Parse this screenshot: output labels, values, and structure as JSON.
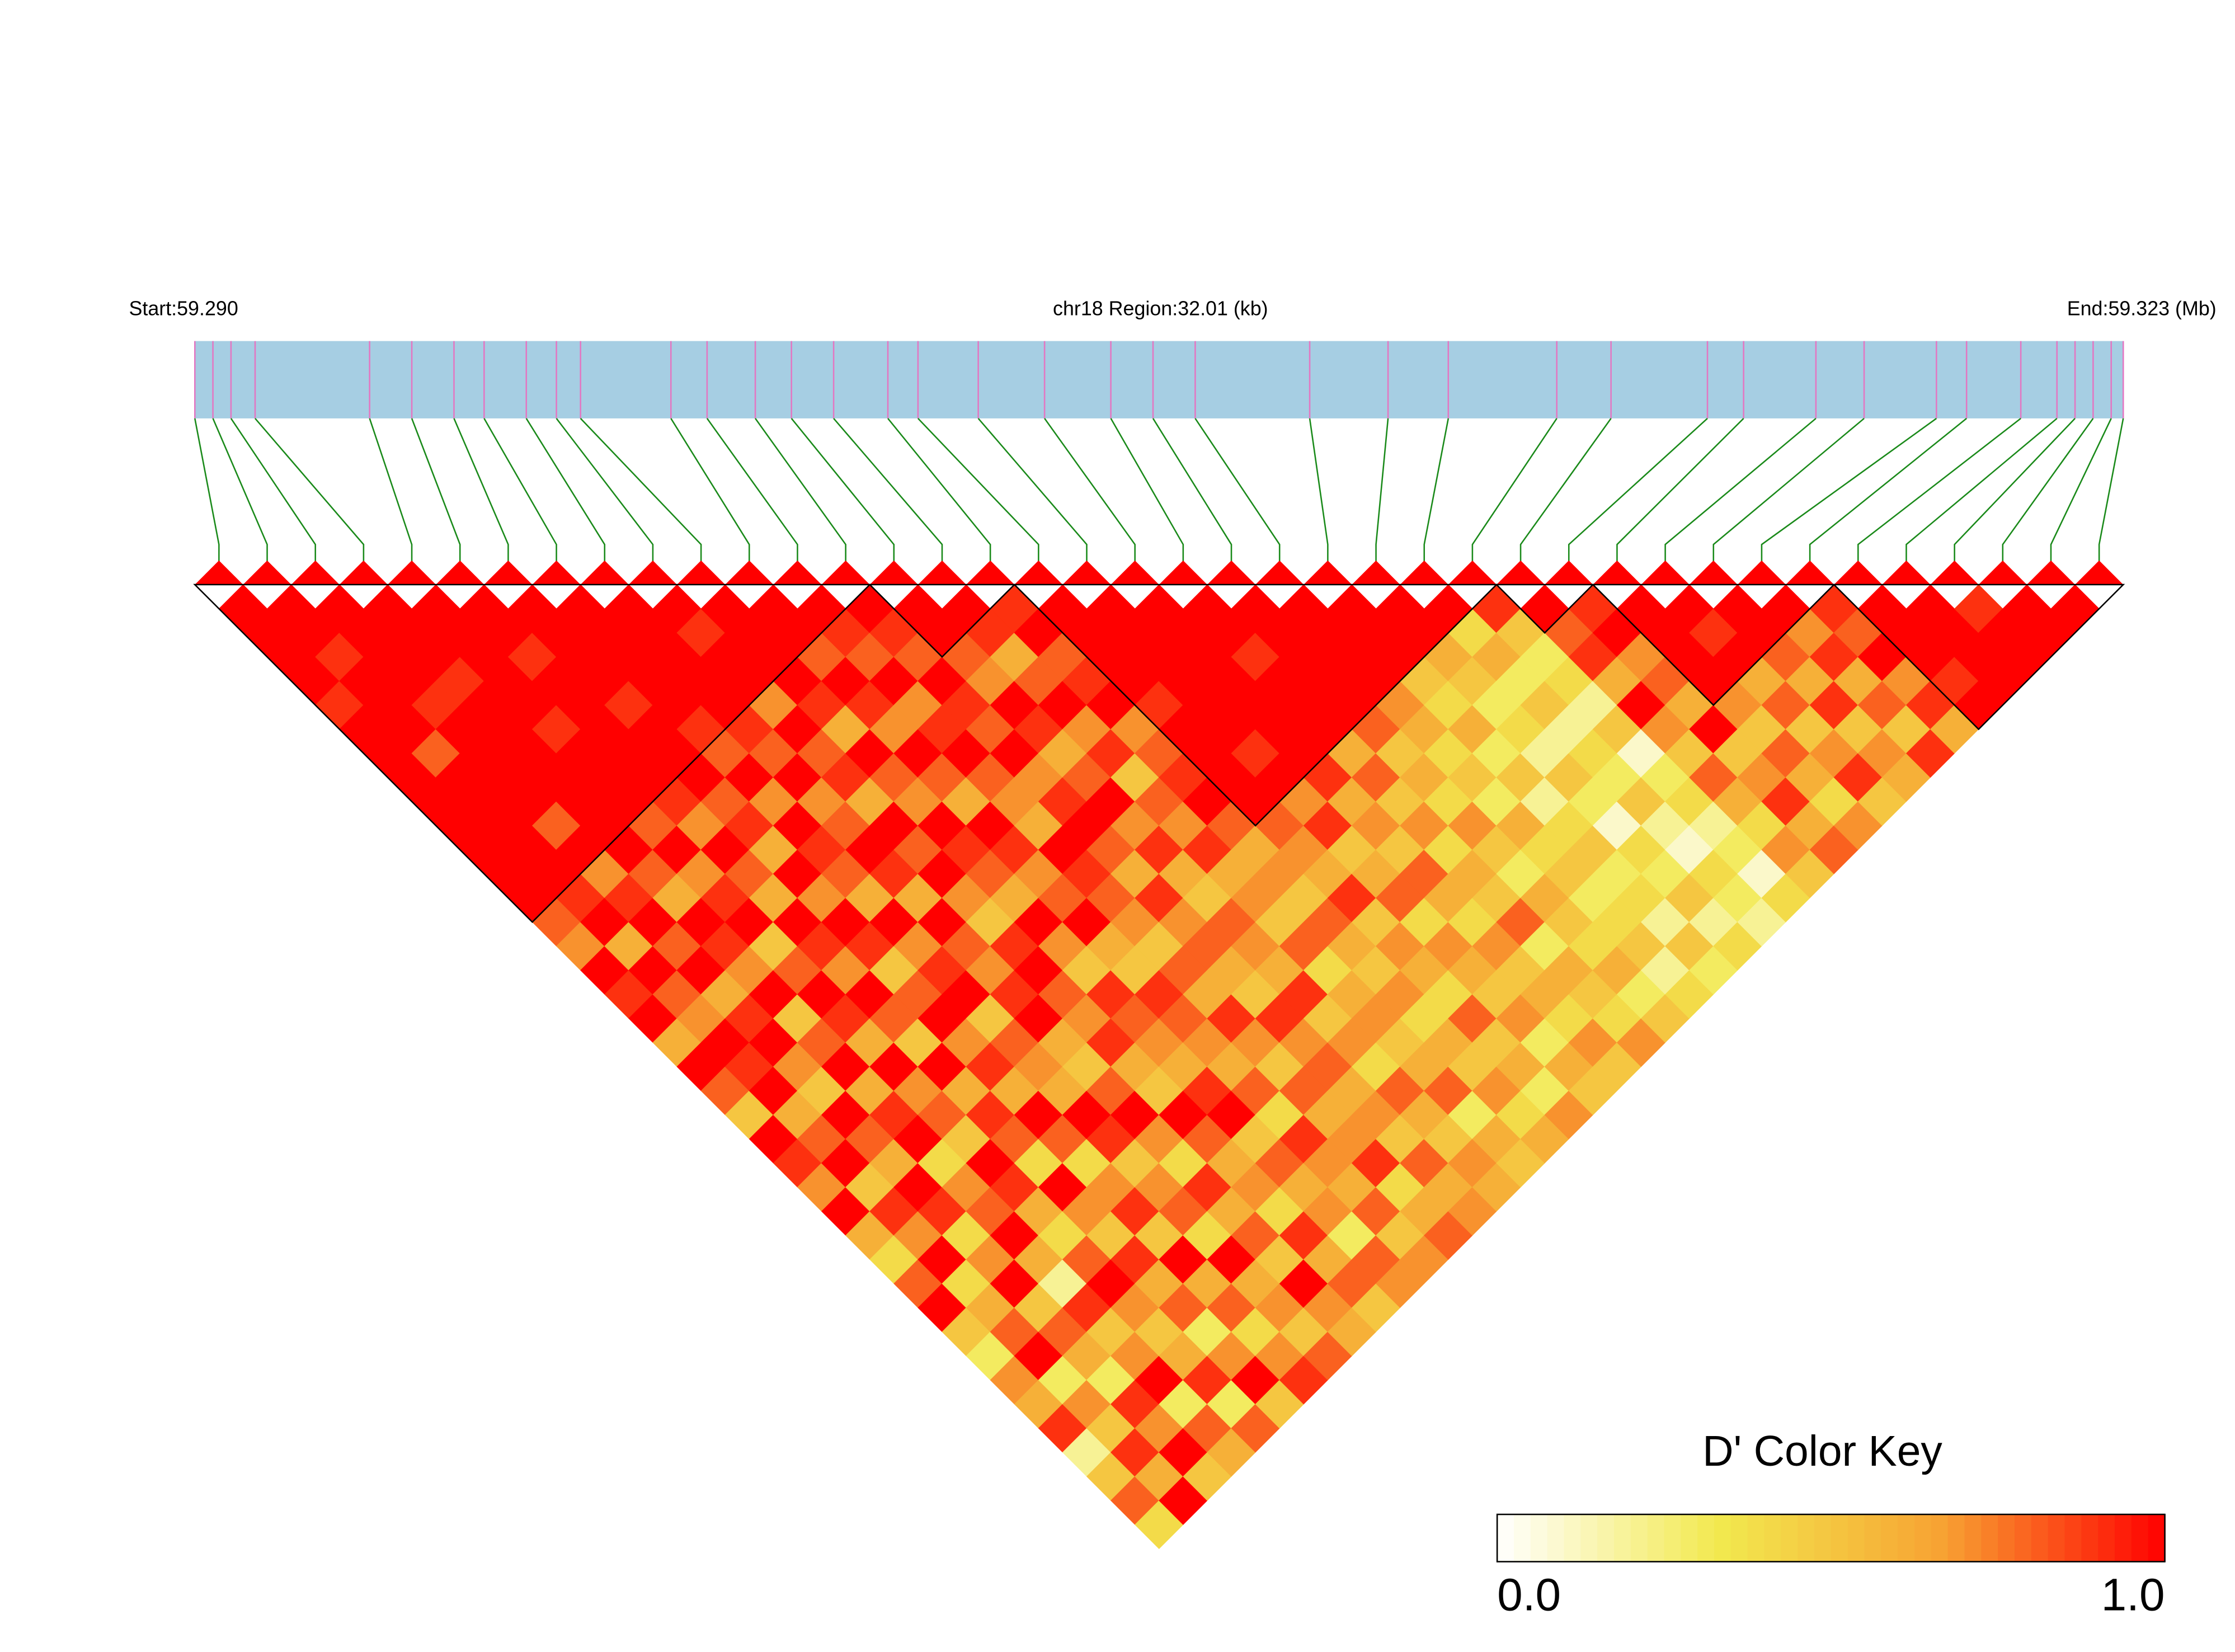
{
  "chart_data": {
    "type": "ld_heatmap",
    "title": "chr18 Region:32.01 (kb)",
    "start_label": "Start:59.290",
    "end_label": "End:59.323 (Mb)",
    "xlim": [
      59.2905,
      59.3225
    ],
    "snp_positions": [
      59.2905,
      59.2908,
      59.2911,
      59.2915,
      59.2934,
      59.2941,
      59.2948,
      59.2953,
      59.296,
      59.2965,
      59.2969,
      59.2984,
      59.299,
      59.2998,
      59.3004,
      59.3011,
      59.302,
      59.3025,
      59.3035,
      59.3046,
      59.3057,
      59.3064,
      59.3071,
      59.309,
      59.3103,
      59.3113,
      59.3131,
      59.314,
      59.3156,
      59.3162,
      59.3174,
      59.3182,
      59.3194,
      59.3199,
      59.3208,
      59.3214,
      59.3217,
      59.322,
      59.3223,
      59.3225
    ],
    "ld": [
      [
        1,
        1,
        1,
        1,
        0.9,
        1,
        1,
        1,
        1,
        1,
        1,
        1,
        1,
        0.8,
        0.7,
        1,
        0.9,
        1,
        0.6,
        1,
        0.8,
        0.5,
        1,
        0.9,
        0.7,
        1,
        0.6,
        0.4,
        0.8,
        1,
        0.5,
        0.3,
        0.7,
        0.6,
        0.9,
        0.2,
        0.5,
        0.8,
        0.4
      ],
      [
        1,
        1,
        0.9,
        1,
        1,
        1,
        0.8,
        1,
        1,
        1,
        1,
        1,
        0.9,
        1,
        0.6,
        1,
        0.8,
        0.7,
        1,
        0.9,
        1,
        0.6,
        0.8,
        1,
        0.5,
        0.9,
        0.7,
        1,
        0.4,
        0.6,
        0.8,
        1,
        0.3,
        0.7,
        0.5,
        0.9,
        0.6,
        1
      ],
      [
        1,
        1,
        1,
        1,
        0.9,
        1,
        1,
        1,
        1,
        0.8,
        1,
        0.7,
        0.9,
        1,
        0.8,
        1,
        0.6,
        0.9,
        1,
        0.7,
        0.5,
        1,
        0.8,
        0.6,
        1,
        0.9,
        0.4,
        0.7,
        1,
        0.5,
        0.8,
        0.6,
        0.3,
        0.9,
        0.7,
        1,
        0.5
      ],
      [
        1,
        1,
        1,
        0.9,
        1,
        1,
        1,
        1,
        1,
        1,
        1,
        0.8,
        0.6,
        1,
        0.9,
        0.7,
        1,
        0.5,
        0.8,
        1,
        0.6,
        0.9,
        1,
        0.4,
        0.7,
        0.8,
        1,
        0.6,
        0.2,
        0.9,
        0.5,
        0.7,
        1,
        0.3,
        0.8,
        0.6
      ],
      [
        1,
        1,
        1,
        1,
        1,
        0.9,
        1,
        1,
        1,
        0.8,
        1,
        0.7,
        0.9,
        1,
        0.5,
        0.8,
        1,
        0.9,
        0.6,
        1,
        0.7,
        0.8,
        0.5,
        1,
        0.9,
        0.6,
        0.4,
        0.8,
        1,
        0.7,
        0.5,
        0.6,
        0.9,
        0.3,
        0.8
      ],
      [
        1,
        1,
        0.9,
        1,
        1,
        1,
        1,
        1,
        0.9,
        0.7,
        1,
        0.8,
        0.6,
        1,
        0.9,
        0.7,
        1,
        0.8,
        0.5,
        1,
        0.6,
        0.9,
        0.8,
        0.4,
        1,
        0.7,
        0.5,
        0.9,
        0.6,
        0.8,
        0.3,
        0.7,
        1,
        0.5
      ],
      [
        1,
        1,
        1,
        1,
        0.9,
        1,
        1,
        1,
        0.8,
        0.9,
        0.6,
        1,
        0.7,
        1,
        0.9,
        0.5,
        0.8,
        1,
        0.7,
        0.9,
        0.6,
        1,
        0.8,
        0.4,
        0.7,
        0.9,
        0.5,
        1,
        0.6,
        0.8,
        0.4,
        0.7,
        0.9
      ],
      [
        1,
        1,
        1,
        1,
        1,
        0.9,
        0.8,
        1,
        0.7,
        1,
        0.9,
        0.8,
        0.6,
        1,
        0.7,
        0.9,
        1,
        0.5,
        0.8,
        0.7,
        0.6,
        1,
        0.9,
        0.5,
        0.7,
        0.8,
        0.4,
        1,
        0.6,
        0.7,
        0.5,
        0.8
      ],
      [
        1,
        1,
        1,
        1,
        1,
        0.9,
        0.8,
        1,
        0.7,
        0.8,
        1,
        0.9,
        0.6,
        1,
        0.8,
        0.7,
        0.9,
        1,
        0.6,
        0.5,
        0.8,
        1,
        0.7,
        0.4,
        0.9,
        0.6,
        0.8,
        0.5,
        1,
        0.7,
        0.6
      ],
      [
        1,
        0.9,
        1,
        1,
        0.7,
        1,
        0.8,
        0.9,
        0.6,
        1,
        0.8,
        1,
        0.7,
        0.5,
        0.9,
        1,
        0.8,
        0.7,
        0.9,
        0.6,
        0.5,
        1,
        0.8,
        0.6,
        0.7,
        0.4,
        0.9,
        0.6,
        0.8,
        0.5
      ],
      [
        1,
        1,
        1,
        1,
        0.9,
        0.6,
        1,
        0.8,
        0.7,
        1,
        0.9,
        0.8,
        0.6,
        1,
        0.7,
        0.5,
        0.9,
        0.8,
        0.7,
        0.6,
        0.9,
        1,
        0.5,
        0.8,
        0.6,
        0.7,
        0.3,
        0.8,
        0.7
      ],
      [
        1,
        1,
        0.8,
        1,
        0.9,
        0.7,
        1,
        0.8,
        0.6,
        1,
        0.9,
        0.7,
        0.8,
        1,
        0.6,
        0.5,
        0.9,
        0.8,
        0.7,
        0.6,
        0.8,
        0.4,
        0.9,
        0.7,
        0.6,
        0.8,
        0.5,
        0.7
      ],
      [
        1,
        0.9,
        0.8,
        1,
        0.7,
        0.9,
        1,
        0.8,
        0.7,
        0.6,
        1,
        0.9,
        0.8,
        0.7,
        0.5,
        0.8,
        0.6,
        0.9,
        0.7,
        0.5,
        0.8,
        0.6,
        0.7,
        0.9,
        0.4,
        0.6,
        0.8
      ],
      [
        1,
        0.9,
        0.8,
        1,
        0.9,
        0.8,
        1,
        0.7,
        0.9,
        1,
        0.8,
        0.6,
        0.9,
        0.7,
        0.8,
        0.6,
        0.5,
        0.9,
        0.7,
        0.8,
        0.6,
        0.7,
        0.5,
        0.8,
        0.6,
        0.7
      ],
      [
        1,
        1,
        0.8,
        0.7,
        1,
        0.9,
        0.6,
        0.8,
        1,
        0.7,
        0.9,
        0.6,
        0.5,
        0.8,
        0.7,
        0.6,
        0.9,
        0.5,
        0.7,
        0.4,
        0.8,
        0.6,
        0.5,
        0.7,
        0.6
      ],
      [
        1,
        0.9,
        0.6,
        0.8,
        1,
        0.7,
        0.9,
        0.5,
        0.8,
        0.7,
        0.9,
        0.6,
        0.7,
        0.5,
        0.8,
        0.4,
        0.6,
        0.7,
        0.5,
        0.6,
        0.8,
        0.3,
        0.6,
        0.5
      ],
      [
        0.9,
        1,
        0.8,
        0.9,
        1,
        0.7,
        0.8,
        0.9,
        1,
        0.8,
        0.6,
        0.7,
        0.5,
        0.8,
        0.6,
        0.5,
        0.7,
        0.4,
        0.6,
        0.5,
        0.7,
        0.4,
        0.6
      ],
      [
        1,
        1,
        1,
        1,
        0.9,
        1,
        1,
        1,
        1,
        0.8,
        0.7,
        0.6,
        0.9,
        0.5,
        0.7,
        0.6,
        0.4,
        0.8,
        0.5,
        0.6,
        0.3,
        0.7
      ],
      [
        1,
        1,
        1,
        1,
        1,
        1,
        0.9,
        1,
        0.7,
        0.9,
        0.5,
        0.6,
        0.8,
        0.4,
        0.7,
        0.6,
        0.5,
        0.7,
        0.3,
        0.6,
        0.5
      ],
      [
        1,
        1,
        1,
        1,
        1,
        1,
        1,
        0.9,
        0.6,
        0.7,
        0.5,
        0.8,
        0.6,
        0.4,
        0.7,
        0.5,
        0.6,
        0.4,
        0.7,
        0.5
      ],
      [
        1,
        1,
        0.9,
        1,
        1,
        1,
        0.6,
        0.8,
        0.5,
        0.7,
        0.4,
        0.6,
        0.5,
        0.8,
        0.3,
        0.6,
        0.5,
        0.4,
        0.7
      ],
      [
        1,
        1,
        1,
        1,
        1,
        0.8,
        0.5,
        0.6,
        0.4,
        0.7,
        0.5,
        0.3,
        0.6,
        0.5,
        0.4,
        0.6,
        0.3,
        0.5
      ],
      [
        1,
        1,
        1,
        1,
        0.7,
        0.6,
        0.4,
        0.5,
        0.3,
        0.6,
        0.4,
        0.5,
        0.3,
        0.4,
        0.5,
        0.2,
        0.4
      ],
      [
        1,
        1,
        1,
        0.5,
        0.4,
        0.6,
        0.3,
        0.5,
        0.2,
        0.4,
        0.5,
        0.3,
        0.4,
        0.2,
        0.5,
        0.3
      ],
      [
        1,
        1,
        0.6,
        0.5,
        0.3,
        0.4,
        0.2,
        0.5,
        0.3,
        0.1,
        0.4,
        0.3,
        0.5,
        0.2,
        0.4
      ],
      [
        1,
        0.4,
        0.6,
        0.3,
        0.5,
        0.2,
        0.4,
        0.3,
        0.5,
        0.2,
        0.1,
        0.4,
        0.3,
        0.2
      ],
      [
        0.9,
        0.5,
        0.3,
        0.4,
        0.2,
        0.5,
        0.1,
        0.3,
        0.4,
        0.2,
        0.3,
        0.1,
        0.4
      ],
      [
        1,
        0.8,
        0.9,
        0.6,
        1,
        0.7,
        0.5,
        0.8,
        0.6,
        0.4,
        0.7,
        0.5
      ],
      [
        0.9,
        1,
        0.7,
        0.8,
        0.6,
        1,
        0.5,
        0.7,
        0.9,
        0.6,
        0.8
      ],
      [
        1,
        1,
        1,
        1,
        0.7,
        0.5,
        0.8,
        0.6,
        0.4,
        0.7
      ],
      [
        1,
        0.9,
        1,
        0.6,
        0.8,
        0.5,
        0.7,
        0.9,
        0.5
      ],
      [
        1,
        1,
        0.8,
        0.6,
        0.9,
        0.5,
        0.7,
        0.6
      ],
      [
        1,
        0.7,
        0.9,
        0.6,
        0.8,
        0.5,
        0.9
      ],
      [
        0.9,
        0.8,
        1,
        0.7,
        0.9,
        0.6
      ],
      [
        1,
        1,
        1,
        0.9,
        1
      ],
      [
        1,
        1,
        1,
        1
      ],
      [
        0.9,
        1,
        1
      ],
      [
        1,
        1
      ],
      [
        1
      ]
    ],
    "blocks": [
      [
        0,
        13
      ],
      [
        14,
        16
      ],
      [
        17,
        26
      ],
      [
        27,
        28
      ],
      [
        29,
        33
      ],
      [
        34,
        39
      ]
    ],
    "bar_color": "#a6cee3",
    "snp_line_color": "#e377c2",
    "link_color": "#1a8a1a",
    "colormap": [
      "#ffffff",
      "#f2e94e",
      "#f7a233",
      "#ff0000"
    ],
    "key_title": "D' Color Key",
    "key_lim": [
      0,
      1
    ],
    "key_ticks": [
      {
        "value": 0,
        "label": "0.0"
      },
      {
        "value": 1,
        "label": "1.0"
      }
    ]
  }
}
